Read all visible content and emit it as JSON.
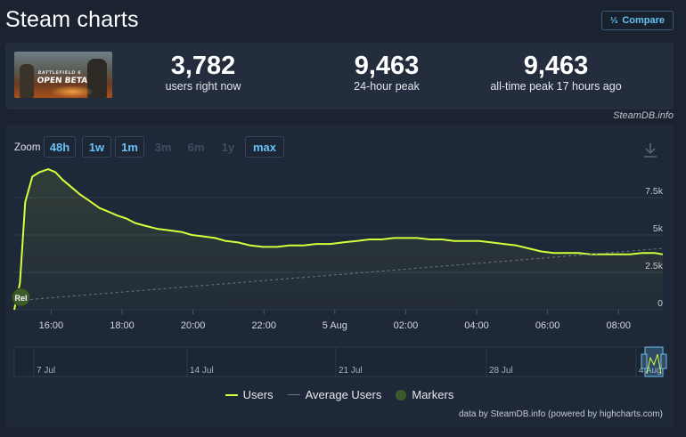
{
  "page": {
    "title": "Steam charts",
    "compare_label": "Compare",
    "compare_icon": "sort-numeric-icon"
  },
  "banner": {
    "game_title": "BATTLEFIELD 6",
    "subtitle": "OPEN BETA"
  },
  "stats": [
    {
      "value": "3,782",
      "label": "users right now"
    },
    {
      "value": "9,463",
      "label": "24-hour peak"
    },
    {
      "value": "9,463",
      "label": "all-time peak 17 hours ago"
    }
  ],
  "source_credit": "SteamDB.info",
  "zoom": {
    "label": "Zoom",
    "options": [
      {
        "label": "48h",
        "enabled": true
      },
      {
        "label": "1w",
        "enabled": true
      },
      {
        "label": "1m",
        "enabled": true
      },
      {
        "label": "3m",
        "enabled": false
      },
      {
        "label": "6m",
        "enabled": false
      },
      {
        "label": "1y",
        "enabled": false
      },
      {
        "label": "max",
        "enabled": true
      }
    ]
  },
  "legend": {
    "users": "Users",
    "average": "Average Users",
    "markers": "Markers"
  },
  "footer_credit": "data by SteamDB.info (powered by highcharts.com)",
  "colors": {
    "users_line": "#d6ff3c",
    "average_line": "#6b7684",
    "marker": "#3d5a2a",
    "accent": "#67c1f5"
  },
  "chart_data": {
    "type": "line",
    "ylim": [
      0,
      10000
    ],
    "y_ticks": [
      0,
      2500,
      5000,
      7500
    ],
    "y_tick_labels": [
      "0",
      "2.5k",
      "5k",
      "7.5k"
    ],
    "x_range_hours": [
      14.96,
      33.25
    ],
    "x_ticks": [
      {
        "h": 16,
        "label": "16:00"
      },
      {
        "h": 18,
        "label": "18:00"
      },
      {
        "h": 20,
        "label": "20:00"
      },
      {
        "h": 22,
        "label": "22:00"
      },
      {
        "h": 24,
        "label": "5 Aug"
      },
      {
        "h": 26,
        "label": "02:00"
      },
      {
        "h": 28,
        "label": "04:00"
      },
      {
        "h": 30,
        "label": "06:00"
      },
      {
        "h": 32,
        "label": "08:00"
      }
    ],
    "series": [
      {
        "name": "Users",
        "x_hours": [
          14.96,
          15.12,
          15.27,
          15.47,
          15.67,
          15.92,
          16.12,
          16.32,
          16.57,
          16.82,
          17.07,
          17.37,
          17.57,
          17.87,
          18.12,
          18.37,
          18.67,
          19.02,
          19.37,
          19.67,
          19.97,
          20.32,
          20.62,
          20.92,
          21.27,
          21.62,
          21.97,
          22.37,
          22.72,
          23.12,
          23.47,
          23.87,
          24.22,
          24.62,
          24.97,
          25.32,
          25.67,
          25.97,
          26.32,
          26.67,
          27.02,
          27.37,
          27.72,
          28.07,
          28.42,
          28.77,
          29.12,
          29.47,
          29.82,
          30.17,
          30.52,
          30.87,
          31.22,
          31.62,
          31.97,
          32.32,
          32.67,
          33.02,
          33.25
        ],
        "values": [
          0,
          1800,
          7200,
          8900,
          9200,
          9400,
          9200,
          8700,
          8200,
          7700,
          7300,
          6800,
          6600,
          6300,
          6100,
          5800,
          5600,
          5400,
          5300,
          5200,
          5000,
          4900,
          4800,
          4600,
          4500,
          4300,
          4200,
          4200,
          4300,
          4300,
          4400,
          4400,
          4500,
          4600,
          4700,
          4700,
          4800,
          4800,
          4800,
          4700,
          4700,
          4600,
          4600,
          4600,
          4500,
          4400,
          4300,
          4100,
          3900,
          3800,
          3800,
          3800,
          3700,
          3700,
          3700,
          3700,
          3800,
          3800,
          3700
        ]
      },
      {
        "name": "Average Users",
        "x_hours": [
          14.96,
          33.25
        ],
        "values": [
          600,
          4100
        ]
      }
    ],
    "marker_label": "Rel",
    "marker_x_hours": 15.15,
    "navigator_labels": [
      "7 Jul",
      "14 Jul",
      "21 Jul",
      "28 Jul",
      "4 Aug"
    ]
  }
}
